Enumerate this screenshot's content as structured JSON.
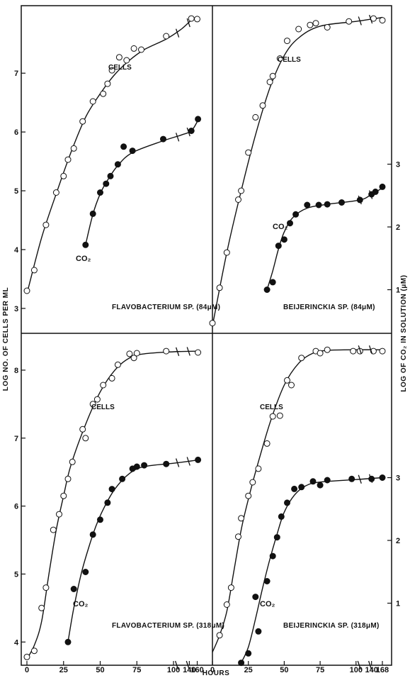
{
  "figure": {
    "y_axis_left_label": "LOG NO. OF CELLS PER ML",
    "y_axis_right_label": "LOG OF CO₂ IN SOLUTION (μM)",
    "x_axis_label": "HOURS"
  },
  "chart_data": [
    {
      "type": "scatter",
      "title": "FLAVOBACTERIUM SP. (84μM)",
      "xlabel": "HOURS",
      "ylabel": "LOG NO. OF CELLS PER ML",
      "x_tick_labels": [],
      "y_ticks": [
        3,
        4,
        5,
        6,
        7
      ],
      "right_ticks": [],
      "ylim": [
        2.6,
        8.1
      ],
      "annotations": {
        "cells": "CELLS",
        "co2": "CO₂"
      },
      "series": [
        {
          "name": "CELLS",
          "marker": "open",
          "points": [
            [
              0,
              3.3
            ],
            [
              5,
              3.65
            ],
            [
              13,
              4.42
            ],
            [
              20,
              4.97
            ],
            [
              25,
              5.25
            ],
            [
              28,
              5.53
            ],
            [
              32,
              5.72
            ],
            [
              38,
              6.18
            ],
            [
              45,
              6.52
            ],
            [
              52,
              6.65
            ],
            [
              55,
              6.82
            ],
            [
              58,
              7.05
            ],
            [
              63,
              7.27
            ],
            [
              68,
              7.22
            ],
            [
              73,
              7.42
            ],
            [
              78,
              7.4
            ],
            [
              95,
              7.63
            ],
            [
              145,
              7.93
            ],
            [
              160,
              7.92
            ]
          ],
          "curve": [
            [
              0,
              3.25
            ],
            [
              10,
              4.2
            ],
            [
              20,
              4.95
            ],
            [
              30,
              5.65
            ],
            [
              40,
              6.25
            ],
            [
              50,
              6.65
            ],
            [
              60,
              6.98
            ],
            [
              70,
              7.22
            ],
            [
              80,
              7.4
            ],
            [
              95,
              7.58
            ],
            [
              120,
              7.75
            ],
            [
              145,
              7.9
            ],
            [
              160,
              7.95
            ]
          ]
        },
        {
          "name": "CO₂",
          "marker": "filled",
          "points": [
            [
              40,
              4.08
            ],
            [
              45,
              4.61
            ],
            [
              50,
              4.97
            ],
            [
              54,
              5.12
            ],
            [
              57,
              5.25
            ],
            [
              62,
              5.45
            ],
            [
              66,
              5.75
            ],
            [
              72,
              5.68
            ],
            [
              93,
              5.88
            ],
            [
              145,
              6.02
            ],
            [
              162,
              6.22
            ]
          ],
          "curve": [
            [
              40,
              4.08
            ],
            [
              45,
              4.6
            ],
            [
              50,
              4.95
            ],
            [
              55,
              5.18
            ],
            [
              62,
              5.43
            ],
            [
              72,
              5.65
            ],
            [
              93,
              5.85
            ],
            [
              120,
              5.95
            ],
            [
              145,
              6.02
            ],
            [
              162,
              6.2
            ]
          ]
        }
      ]
    },
    {
      "type": "scatter",
      "title": "BEIJERINCKIA SP. (84μM)",
      "xlabel": "HOURS",
      "ylabel": "LOG OF CO₂ IN SOLUTION (μM)",
      "x_tick_labels": [],
      "y_ticks": [],
      "right_ticks": [
        1,
        2,
        3
      ],
      "ylim": [
        2.6,
        8.1
      ],
      "annotations": {
        "cells": "CELLS",
        "co2": "CO₂"
      },
      "series": [
        {
          "name": "CELLS",
          "marker": "open",
          "points": [
            [
              0,
              2.75
            ],
            [
              5,
              3.35
            ],
            [
              10,
              3.95
            ],
            [
              18,
              4.85
            ],
            [
              20,
              5.0
            ],
            [
              25,
              5.65
            ],
            [
              30,
              6.25
            ],
            [
              35,
              6.45
            ],
            [
              40,
              6.85
            ],
            [
              42,
              6.95
            ],
            [
              47,
              7.25
            ],
            [
              52,
              7.55
            ],
            [
              60,
              7.75
            ],
            [
              68,
              7.82
            ],
            [
              72,
              7.85
            ],
            [
              80,
              7.78
            ],
            [
              95,
              7.88
            ],
            [
              145,
              7.93
            ],
            [
              168,
              7.9
            ]
          ],
          "curve": [
            [
              0,
              2.7
            ],
            [
              10,
              3.95
            ],
            [
              20,
              5.0
            ],
            [
              30,
              5.95
            ],
            [
              40,
              6.75
            ],
            [
              50,
              7.3
            ],
            [
              60,
              7.6
            ],
            [
              75,
              7.8
            ],
            [
              100,
              7.88
            ],
            [
              140,
              7.92
            ],
            [
              168,
              7.95
            ]
          ]
        },
        {
          "name": "CO₂",
          "marker": "filled",
          "points": [
            [
              38,
              1.0
            ],
            [
              42,
              1.12
            ],
            [
              46,
              1.7
            ],
            [
              50,
              1.8
            ],
            [
              54,
              2.06
            ],
            [
              58,
              2.2
            ],
            [
              66,
              2.35
            ],
            [
              74,
              2.35
            ],
            [
              80,
              2.36
            ],
            [
              90,
              2.39
            ],
            [
              110,
              2.43
            ],
            [
              140,
              2.52
            ],
            [
              150,
              2.56
            ],
            [
              168,
              2.64
            ]
          ],
          "curve": [
            [
              38,
              1.0
            ],
            [
              42,
              1.3
            ],
            [
              46,
              1.65
            ],
            [
              50,
              1.92
            ],
            [
              56,
              2.15
            ],
            [
              66,
              2.3
            ],
            [
              80,
              2.36
            ],
            [
              110,
              2.43
            ],
            [
              140,
              2.52
            ],
            [
              168,
              2.62
            ]
          ]
        }
      ]
    },
    {
      "type": "scatter",
      "title": "FLAVOBACTERIUM SP. (318μM)",
      "xlabel": "HOURS",
      "ylabel": "LOG NO. OF CELLS PER ML",
      "x_tick_labels": [
        "0",
        "25",
        "50",
        "75",
        "100",
        "140",
        "160"
      ],
      "y_ticks": [
        4,
        5,
        6,
        7,
        8
      ],
      "right_ticks": [],
      "ylim": [
        3.7,
        8.5
      ],
      "annotations": {
        "cells": "CELLS",
        "co2": "CO₂"
      },
      "series": [
        {
          "name": "CELLS",
          "marker": "open",
          "points": [
            [
              0,
              3.78
            ],
            [
              5,
              3.87
            ],
            [
              10,
              4.5
            ],
            [
              13,
              4.8
            ],
            [
              18,
              5.65
            ],
            [
              22,
              5.88
            ],
            [
              25,
              6.15
            ],
            [
              28,
              6.4
            ],
            [
              31,
              6.65
            ],
            [
              38,
              7.13
            ],
            [
              40,
              7.0
            ],
            [
              45,
              7.5
            ],
            [
              48,
              7.57
            ],
            [
              52,
              7.78
            ],
            [
              58,
              7.88
            ],
            [
              62,
              8.08
            ],
            [
              70,
              8.24
            ],
            [
              73,
              8.18
            ],
            [
              75,
              8.25
            ],
            [
              95,
              8.28
            ],
            [
              162,
              8.26
            ]
          ],
          "curve": [
            [
              0,
              3.75
            ],
            [
              5,
              3.95
            ],
            [
              10,
              4.3
            ],
            [
              15,
              5.0
            ],
            [
              20,
              5.65
            ],
            [
              25,
              6.15
            ],
            [
              30,
              6.6
            ],
            [
              40,
              7.2
            ],
            [
              50,
              7.68
            ],
            [
              60,
              8.0
            ],
            [
              70,
              8.18
            ],
            [
              80,
              8.24
            ],
            [
              100,
              8.27
            ],
            [
              162,
              8.28
            ]
          ]
        },
        {
          "name": "CO₂",
          "marker": "filled",
          "points": [
            [
              28,
              4.0
            ],
            [
              32,
              4.78
            ],
            [
              40,
              5.03
            ],
            [
              45,
              5.58
            ],
            [
              50,
              5.8
            ],
            [
              55,
              6.05
            ],
            [
              58,
              6.25
            ],
            [
              65,
              6.4
            ],
            [
              72,
              6.55
            ],
            [
              75,
              6.58
            ],
            [
              80,
              6.6
            ],
            [
              95,
              6.62
            ],
            [
              162,
              6.68
            ]
          ],
          "curve": [
            [
              28,
              4.0
            ],
            [
              32,
              4.5
            ],
            [
              37,
              5.0
            ],
            [
              42,
              5.38
            ],
            [
              47,
              5.7
            ],
            [
              52,
              5.95
            ],
            [
              60,
              6.25
            ],
            [
              70,
              6.48
            ],
            [
              80,
              6.58
            ],
            [
              100,
              6.63
            ],
            [
              140,
              6.66
            ],
            [
              162,
              6.68
            ]
          ]
        }
      ]
    },
    {
      "type": "scatter",
      "title": "BEIJERINCKIA SP. (318μM)",
      "xlabel": "HOURS",
      "ylabel": "LOG OF CO₂ IN SOLUTION (μM)",
      "x_tick_labels": [
        "0",
        "25",
        "50",
        "75",
        "100",
        "140",
        "168"
      ],
      "y_ticks": [],
      "right_ticks": [
        1,
        2,
        3
      ],
      "ylim": [
        3.7,
        8.5
      ],
      "annotations": {
        "cells": "CELLS",
        "co2": "CO₂"
      },
      "series": [
        {
          "name": "CELLS",
          "marker": "open",
          "points": [
            [
              5,
              4.1
            ],
            [
              10,
              4.55
            ],
            [
              13,
              4.8
            ],
            [
              18,
              5.55
            ],
            [
              20,
              5.82
            ],
            [
              25,
              6.15
            ],
            [
              28,
              6.35
            ],
            [
              32,
              6.55
            ],
            [
              38,
              6.92
            ],
            [
              42,
              7.32
            ],
            [
              47,
              7.33
            ],
            [
              52,
              7.85
            ],
            [
              55,
              7.78
            ],
            [
              62,
              8.18
            ],
            [
              72,
              8.28
            ],
            [
              75,
              8.25
            ],
            [
              80,
              8.3
            ],
            [
              98,
              8.28
            ],
            [
              110,
              8.28
            ],
            [
              145,
              8.28
            ],
            [
              168,
              8.28
            ]
          ],
          "curve": [
            [
              0,
              3.85
            ],
            [
              5,
              4.1
            ],
            [
              10,
              4.45
            ],
            [
              15,
              5.05
            ],
            [
              20,
              5.65
            ],
            [
              25,
              6.1
            ],
            [
              30,
              6.5
            ],
            [
              40,
              7.22
            ],
            [
              50,
              7.78
            ],
            [
              60,
              8.1
            ],
            [
              70,
              8.25
            ],
            [
              80,
              8.29
            ],
            [
              100,
              8.3
            ],
            [
              168,
              8.3
            ]
          ]
        },
        {
          "name": "CO₂",
          "marker": "filled",
          "points": [
            [
              20,
              0.05
            ],
            [
              25,
              0.2
            ],
            [
              30,
              1.1
            ],
            [
              32,
              0.55
            ],
            [
              38,
              1.35
            ],
            [
              42,
              1.75
            ],
            [
              45,
              2.05
            ],
            [
              48,
              2.38
            ],
            [
              52,
              2.6
            ],
            [
              57,
              2.82
            ],
            [
              62,
              2.85
            ],
            [
              70,
              2.94
            ],
            [
              75,
              2.88
            ],
            [
              80,
              2.96
            ],
            [
              97,
              2.98
            ],
            [
              140,
              2.98
            ],
            [
              168,
              3.0
            ]
          ],
          "curve": [
            [
              20,
              0.05
            ],
            [
              25,
              0.3
            ],
            [
              30,
              0.75
            ],
            [
              35,
              1.25
            ],
            [
              40,
              1.7
            ],
            [
              45,
              2.1
            ],
            [
              50,
              2.45
            ],
            [
              57,
              2.72
            ],
            [
              65,
              2.87
            ],
            [
              75,
              2.93
            ],
            [
              100,
              2.97
            ],
            [
              168,
              3.0
            ]
          ]
        }
      ]
    }
  ]
}
